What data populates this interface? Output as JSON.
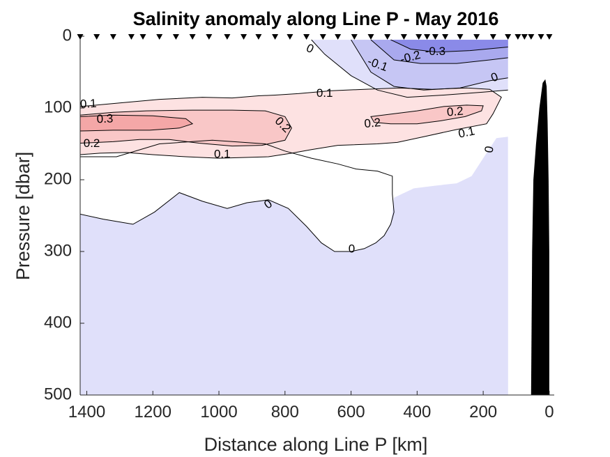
{
  "chart_data": {
    "type": "contour",
    "title": "Salinity anomaly along Line P - May 2016",
    "xlabel": "Distance along Line P [km]",
    "ylabel": "Pressure [dbar]",
    "xlim": [
      1420,
      -15
    ],
    "ylim": [
      0,
      500
    ],
    "x_reversed": true,
    "y_reversed": true,
    "x_ticks": [
      1400,
      1200,
      1000,
      800,
      600,
      400,
      200,
      0
    ],
    "y_ticks": [
      0,
      100,
      200,
      300,
      400,
      500
    ],
    "colors": {
      "neg_0": "#e0e0fa",
      "neg_01": "#c6c6f4",
      "neg_02": "#a9a9ee",
      "neg_03": "#8a8ae8",
      "pos_01": "#fde2e2",
      "pos_02": "#f9c7c7",
      "pos_03": "#f4a7a7",
      "white": "#ffffff",
      "land": "#000000",
      "contour": "#000000"
    },
    "data_coverage_km": [
      125,
      1420
    ],
    "stations_km": [
      1420,
      1370,
      1320,
      1265,
      1230,
      1180,
      1130,
      1080,
      1030,
      975,
      925,
      880,
      830,
      785,
      735,
      685,
      640,
      590,
      540,
      490,
      440,
      395,
      370,
      345,
      315,
      270,
      220,
      170,
      125,
      95,
      75,
      55,
      25,
      0
    ],
    "contour_levels": [
      -0.3,
      -0.2,
      -0.1,
      0,
      0.1,
      0.2,
      0.3
    ],
    "contours": [
      {
        "level": 0,
        "region": "deep",
        "points": [
          [
            1420,
            248
          ],
          [
            1350,
            255
          ],
          [
            1260,
            262
          ],
          [
            1195,
            245
          ],
          [
            1120,
            218
          ],
          [
            1050,
            230
          ],
          [
            975,
            240
          ],
          [
            915,
            232
          ],
          [
            850,
            228
          ],
          [
            790,
            240
          ],
          [
            735,
            265
          ],
          [
            690,
            288
          ],
          [
            650,
            300
          ],
          [
            600,
            300
          ],
          [
            560,
            296
          ],
          [
            525,
            288
          ],
          [
            500,
            278
          ],
          [
            480,
            262
          ],
          [
            470,
            245
          ],
          [
            475,
            220
          ],
          [
            475,
            195
          ],
          [
            520,
            188
          ],
          [
            585,
            185
          ],
          [
            640,
            178
          ],
          [
            720,
            170
          ],
          [
            800,
            160
          ],
          [
            860,
            150
          ],
          [
            1020,
            145
          ],
          [
            1180,
            150
          ],
          [
            1310,
            168
          ],
          [
            1420,
            168
          ]
        ]
      },
      {
        "level": 0,
        "region": "surface",
        "points": [
          [
            720,
            5
          ],
          [
            680,
            25
          ],
          [
            600,
            55
          ],
          [
            520,
            75
          ],
          [
            430,
            85
          ],
          [
            320,
            82
          ],
          [
            200,
            78
          ],
          [
            125,
            75
          ]
        ]
      },
      {
        "level": -0.1,
        "points": [
          [
            600,
            5
          ],
          [
            540,
            50
          ],
          [
            470,
            70
          ],
          [
            380,
            75
          ],
          [
            270,
            72
          ],
          [
            180,
            62
          ],
          [
            125,
            58
          ]
        ]
      },
      {
        "level": -0.2,
        "points": [
          [
            540,
            5
          ],
          [
            470,
            33
          ],
          [
            390,
            38
          ],
          [
            280,
            38
          ],
          [
            180,
            33
          ],
          [
            125,
            30
          ]
        ]
      },
      {
        "level": -0.3,
        "points": [
          [
            480,
            5
          ],
          [
            420,
            18
          ],
          [
            340,
            22
          ],
          [
            240,
            20
          ],
          [
            125,
            15
          ]
        ]
      },
      {
        "level": 0.1,
        "points": [
          [
            1420,
            98
          ],
          [
            1300,
            93
          ],
          [
            1180,
            88
          ],
          [
            1050,
            85
          ],
          [
            960,
            86
          ],
          [
            880,
            83
          ],
          [
            830,
            82
          ],
          [
            760,
            80
          ],
          [
            660,
            76
          ],
          [
            560,
            74
          ],
          [
            455,
            72
          ],
          [
            355,
            74
          ],
          [
            250,
            72
          ],
          [
            180,
            74
          ],
          [
            145,
            85
          ],
          [
            170,
            108
          ],
          [
            190,
            122
          ],
          [
            280,
            130
          ],
          [
            380,
            140
          ],
          [
            460,
            148
          ],
          [
            520,
            150
          ],
          [
            640,
            152
          ],
          [
            720,
            158
          ],
          [
            780,
            163
          ],
          [
            850,
            168
          ],
          [
            1000,
            170
          ],
          [
            1100,
            168
          ],
          [
            1200,
            165
          ],
          [
            1280,
            162
          ],
          [
            1360,
            163
          ],
          [
            1420,
            165
          ]
        ]
      },
      {
        "level": 0.2,
        "points": [
          [
            1420,
            110
          ],
          [
            1320,
            106
          ],
          [
            1220,
            104
          ],
          [
            1080,
            103
          ],
          [
            960,
            103
          ],
          [
            860,
            104
          ],
          [
            800,
            112
          ],
          [
            780,
            128
          ],
          [
            800,
            145
          ],
          [
            870,
            152
          ],
          [
            960,
            153
          ],
          [
            1060,
            149
          ],
          [
            1150,
            144
          ],
          [
            1240,
            144
          ],
          [
            1320,
            147
          ],
          [
            1420,
            149
          ]
        ]
      },
      {
        "level": 0.2,
        "region": "east",
        "points": [
          [
            540,
            112
          ],
          [
            470,
            108
          ],
          [
            400,
            104
          ],
          [
            320,
            98
          ],
          [
            250,
            96
          ],
          [
            200,
            97
          ],
          [
            205,
            104
          ],
          [
            255,
            112
          ],
          [
            330,
            118
          ],
          [
            400,
            122
          ],
          [
            480,
            122
          ],
          [
            530,
            120
          ],
          [
            540,
            112
          ]
        ]
      },
      {
        "level": 0.3,
        "points": [
          [
            1420,
            112
          ],
          [
            1320,
            110
          ],
          [
            1200,
            111
          ],
          [
            1100,
            115
          ],
          [
            1080,
            122
          ],
          [
            1120,
            128
          ],
          [
            1210,
            131
          ],
          [
            1320,
            131
          ],
          [
            1420,
            132
          ]
        ]
      }
    ],
    "contour_label_items": [
      {
        "text": "0.1",
        "x": 1395,
        "y": 95,
        "rotate": -3
      },
      {
        "text": "0.3",
        "x": 1345,
        "y": 116,
        "rotate": -2
      },
      {
        "text": "0.2",
        "x": 1385,
        "y": 150,
        "rotate": 0
      },
      {
        "text": "0.2",
        "x": 808,
        "y": 124,
        "rotate": 45
      },
      {
        "text": "0.1",
        "x": 990,
        "y": 165,
        "rotate": 0
      },
      {
        "text": "0.1",
        "x": 680,
        "y": 80,
        "rotate": 0
      },
      {
        "text": "0.2",
        "x": 535,
        "y": 122,
        "rotate": -5
      },
      {
        "text": "0.2",
        "x": 285,
        "y": 106,
        "rotate": -5
      },
      {
        "text": "0.1",
        "x": 250,
        "y": 135,
        "rotate": -12
      },
      {
        "text": "0",
        "x": 850,
        "y": 235,
        "rotate": -35
      },
      {
        "text": "0",
        "x": 598,
        "y": 297,
        "rotate": 0
      },
      {
        "text": "0",
        "x": 180,
        "y": 158,
        "rotate": -80
      },
      {
        "text": "0",
        "x": 725,
        "y": 18,
        "rotate": 25
      },
      {
        "text": "0",
        "x": 165,
        "y": 58,
        "rotate": -20
      },
      {
        "text": "-0.1",
        "x": 520,
        "y": 40,
        "rotate": 20
      },
      {
        "text": "-0.2",
        "x": 420,
        "y": 30,
        "rotate": -15
      },
      {
        "text": "-0.3",
        "x": 345,
        "y": 22,
        "rotate": 0
      }
    ]
  }
}
